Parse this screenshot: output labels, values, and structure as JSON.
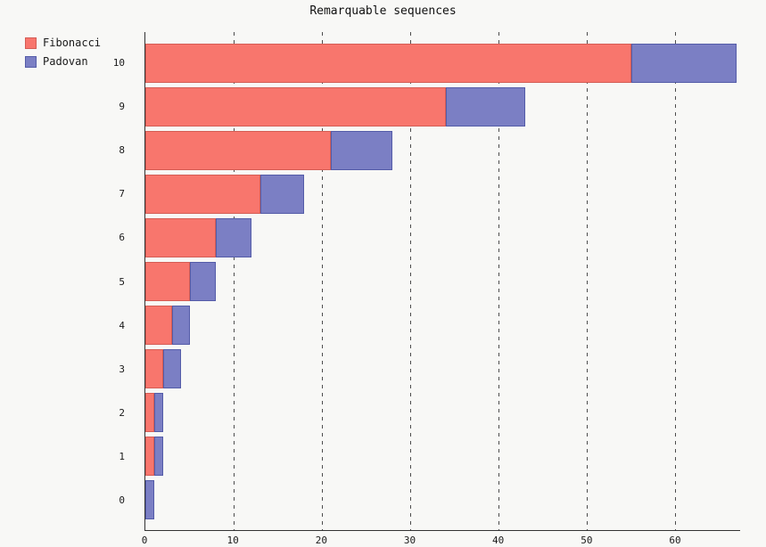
{
  "chart_data": {
    "type": "bar",
    "orientation": "horizontal",
    "stacked": true,
    "title": "Remarquable sequences",
    "categories": [
      10,
      9,
      8,
      7,
      6,
      5,
      4,
      3,
      2,
      1,
      0
    ],
    "series": [
      {
        "name": "Fibonacci",
        "color": "#f8766d",
        "border_color": "#d45d55",
        "values": [
          55,
          34,
          21,
          13,
          8,
          5,
          3,
          2,
          1,
          1,
          0
        ]
      },
      {
        "name": "Padovan",
        "color": "#7b7fc4",
        "border_color": "#545ca8",
        "values": [
          12,
          9,
          7,
          5,
          4,
          3,
          2,
          2,
          1,
          1,
          1
        ]
      }
    ],
    "x_ticks": [
      0,
      10,
      20,
      30,
      40,
      50,
      60
    ],
    "xlim": [
      0,
      67.36
    ],
    "grid": "dashed-vertical",
    "legend_position": "top-left",
    "background_color": "#f8f8f6",
    "axis_color": "#333333",
    "gridline_color": "#4d4d4d"
  }
}
